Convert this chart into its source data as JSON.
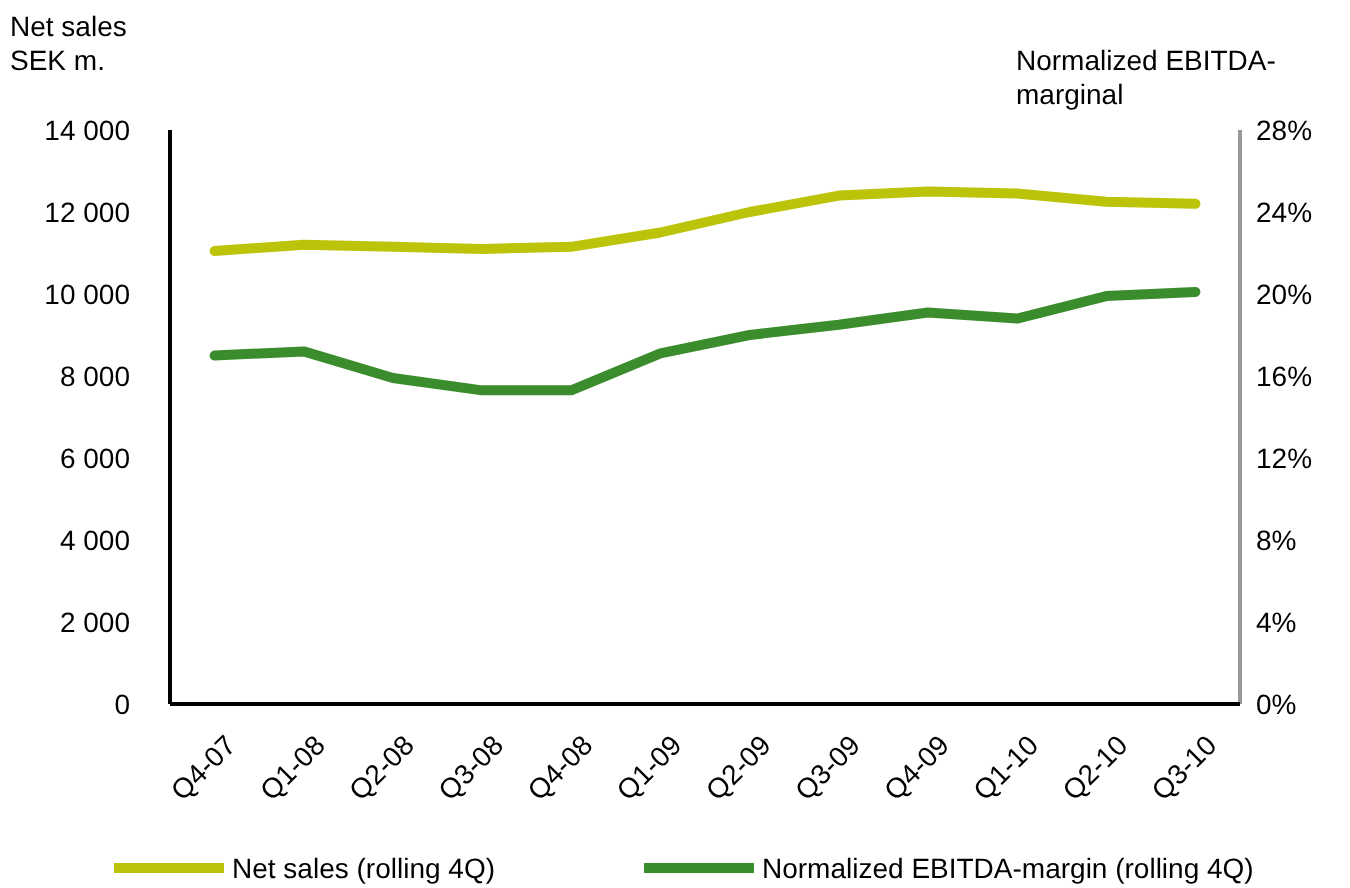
{
  "chart_data": {
    "type": "line",
    "ylabel": "Net sales\nSEK m.",
    "y2label": "Normalized EBITDA-\nmarginal",
    "categories": [
      "Q4-07",
      "Q1-08",
      "Q2-08",
      "Q3-08",
      "Q4-08",
      "Q1-09",
      "Q2-09",
      "Q3-09",
      "Q4-09",
      "Q1-10",
      "Q2-10",
      "Q3-10"
    ],
    "series": [
      {
        "name": "Net sales (rolling 4Q)",
        "color": "#bcc40a",
        "values": [
          11050,
          11200,
          11150,
          11100,
          11150,
          11500,
          12000,
          12400,
          12500,
          12450,
          12250,
          12200
        ]
      },
      {
        "name": "Normalized EBITDA-margin (rolling 4Q)",
        "color": "#3a8c2c",
        "axis": "y2",
        "values": [
          17.0,
          17.2,
          15.9,
          15.3,
          15.3,
          17.1,
          18.0,
          18.5,
          19.1,
          18.8,
          19.9,
          20.1
        ]
      }
    ],
    "ylim": [
      0,
      14000
    ],
    "yticks": [
      {
        "value": 0,
        "label": "0"
      },
      {
        "value": 2000,
        "label": "2 000"
      },
      {
        "value": 4000,
        "label": "4 000"
      },
      {
        "value": 6000,
        "label": "6 000"
      },
      {
        "value": 8000,
        "label": "8 000"
      },
      {
        "value": 10000,
        "label": "10 000"
      },
      {
        "value": 12000,
        "label": "12 000"
      },
      {
        "value": 14000,
        "label": "14 000"
      }
    ],
    "y2lim": [
      0,
      28
    ],
    "y2ticks": [
      {
        "value": 0,
        "label": "0%"
      },
      {
        "value": 4,
        "label": "4%"
      },
      {
        "value": 8,
        "label": "8%"
      },
      {
        "value": 12,
        "label": "12%"
      },
      {
        "value": 16,
        "label": "16%"
      },
      {
        "value": 20,
        "label": "20%"
      },
      {
        "value": 24,
        "label": "24%"
      },
      {
        "value": 28,
        "label": "28%"
      }
    ],
    "grid": false,
    "legend": "bottom",
    "line_style": "solid"
  }
}
